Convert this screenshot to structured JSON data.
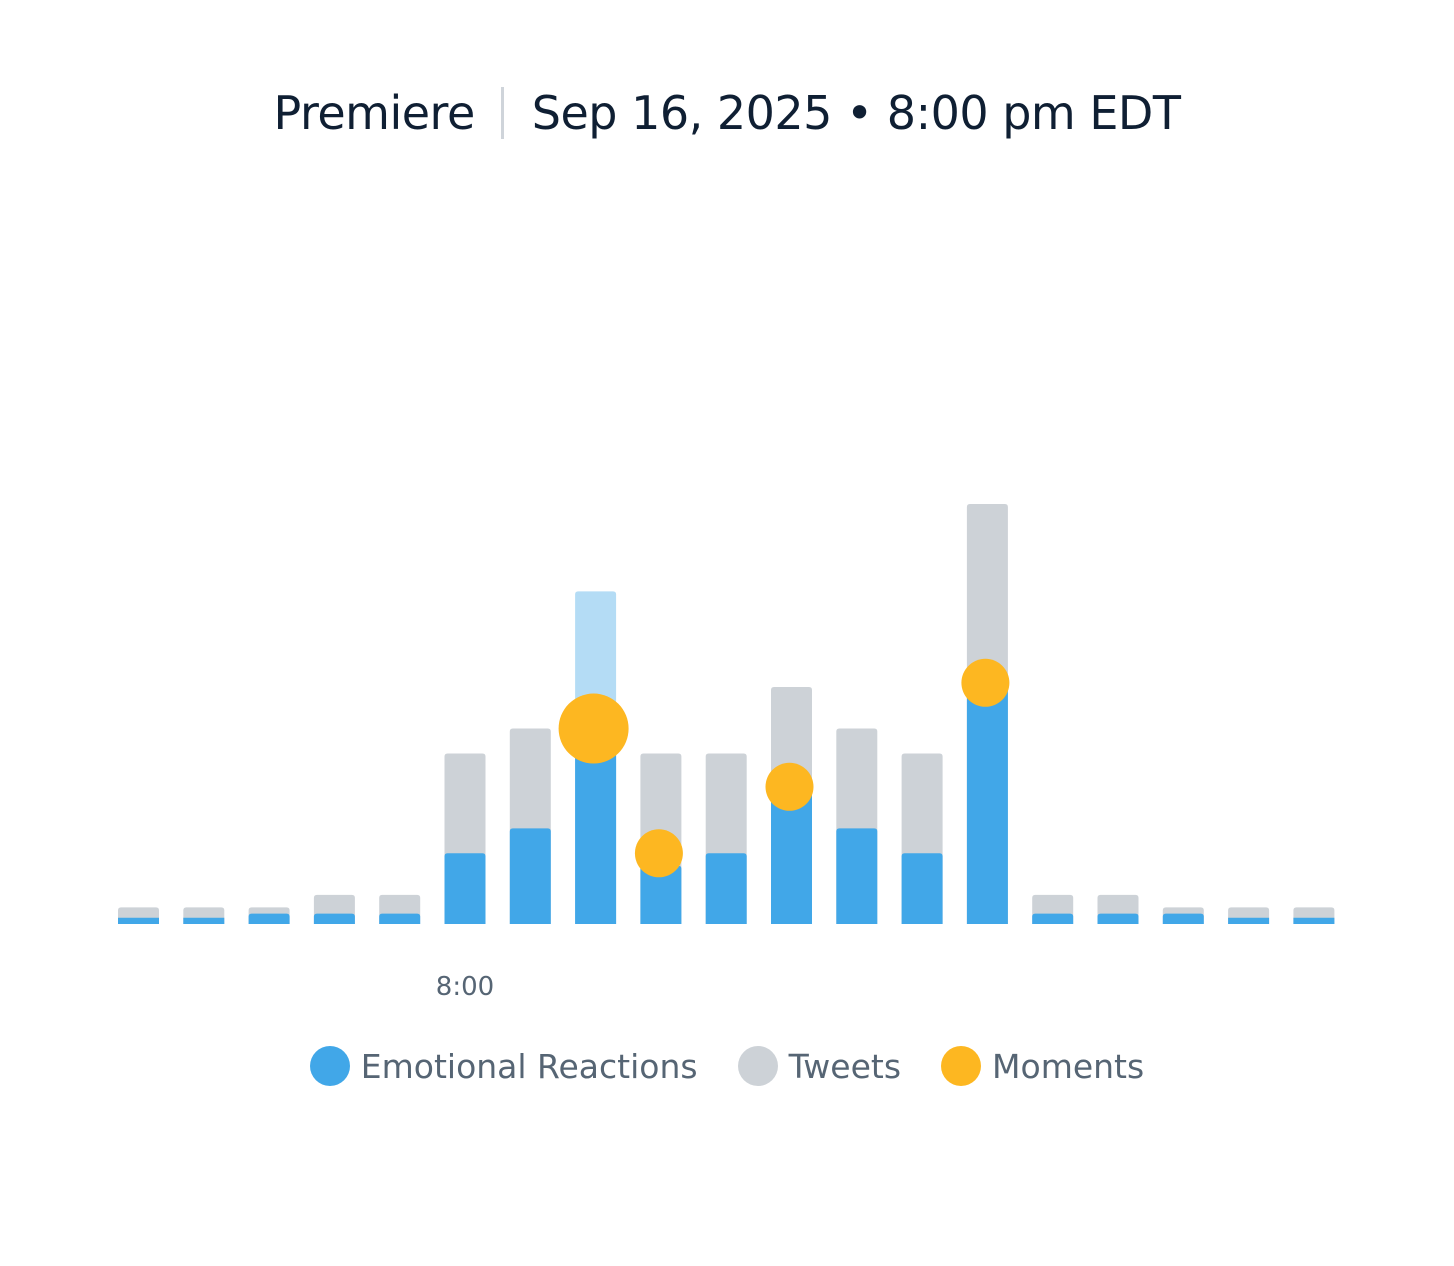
{
  "header": {
    "label": "Premiere",
    "datetime": "Sep 16, 2025 • 8:00 pm EDT"
  },
  "colors": {
    "reactions": "#41a7e8",
    "reactions_highlight": "#b4dcf5",
    "tweets": "#cdd2d7",
    "moments": "#fdb721",
    "axis_text": "#566574",
    "title_text": "#0f1f33"
  },
  "chart_data": {
    "type": "bar",
    "stacked_overlay": true,
    "categories": [
      "",
      "",
      "",
      "",
      "",
      "8:00",
      "",
      "",
      "",
      "",
      "",
      "",
      "",
      "",
      "",
      "",
      "",
      "",
      ""
    ],
    "x_tick_labels": [
      {
        "index": 5,
        "label": "8:00"
      }
    ],
    "ylim": [
      0,
      100
    ],
    "series": [
      {
        "name": "Tweets",
        "values": [
          4,
          4,
          4,
          7,
          7,
          41,
          47,
          80,
          41,
          41,
          57,
          47,
          41,
          101,
          7,
          7,
          4,
          4,
          4
        ]
      },
      {
        "name": "Emotional Reactions",
        "values": [
          1.5,
          1.5,
          2.5,
          2.5,
          2.5,
          17,
          23,
          43,
          14,
          17,
          32,
          23,
          17,
          57,
          2.5,
          2.5,
          2.5,
          1.5,
          1.5
        ]
      },
      {
        "name": "Moments",
        "points": [
          {
            "index": 7,
            "value": 47,
            "size": "large"
          },
          {
            "index": 8,
            "value": 17,
            "size": "medium"
          },
          {
            "index": 10,
            "value": 33,
            "size": "medium"
          },
          {
            "index": 13,
            "value": 58,
            "size": "medium"
          }
        ]
      }
    ],
    "highlighted_index": 7,
    "grid": false,
    "legend": {
      "position": "bottom",
      "entries": [
        "Emotional Reactions",
        "Tweets",
        "Moments"
      ]
    }
  }
}
